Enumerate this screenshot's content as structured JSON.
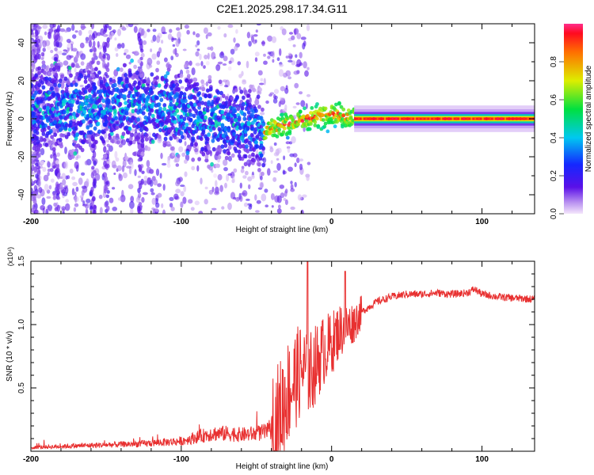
{
  "title": "C2E1.2025.298.17.34.G11",
  "chart_data": [
    {
      "type": "heatmap",
      "xlabel": "Height of straight line (km)",
      "ylabel": "Frequency (Hz)",
      "xlim": [
        -200,
        135
      ],
      "ylim": [
        -50,
        50
      ],
      "xticks": [
        -200,
        -100,
        0,
        100
      ],
      "xtick_labels": [
        "-200",
        "-100",
        "0",
        "100"
      ],
      "yticks": [
        -40,
        -20,
        0,
        20,
        40
      ],
      "ytick_labels": [
        "-40",
        "-20",
        "0",
        "20",
        "40"
      ],
      "colorbar": {
        "label": "Normalized spectral amplitude",
        "range": [
          0.0,
          1.0
        ],
        "ticks": [
          0.0,
          0.2,
          0.4,
          0.6,
          0.8
        ],
        "tick_labels": [
          "0.0",
          "0.2",
          "0.4",
          "0.6",
          "0.8"
        ],
        "colormap": "rainbow (purple-blue-cyan-green-yellow-orange-red)"
      },
      "ridge": {
        "x": [
          -200,
          -180,
          -160,
          -140,
          -120,
          -100,
          -80,
          -60,
          -45,
          -40,
          -30,
          -20,
          -10,
          0,
          5,
          10,
          20,
          40,
          60,
          80,
          100,
          135
        ],
        "y": [
          5,
          5,
          6,
          7,
          6,
          3,
          -1,
          -3,
          -8,
          -5,
          -3,
          -1,
          1,
          3,
          2,
          1,
          0,
          0,
          0,
          0,
          0,
          0
        ]
      }
    },
    {
      "type": "line",
      "xlabel": "Height of straight line (km)",
      "ylabel": "SNR (10 * v/v)",
      "y_multiplier": "(x10⁴)",
      "xlim": [
        -200,
        135
      ],
      "ylim": [
        0,
        1.5
      ],
      "xticks": [
        -200,
        -100,
        0,
        100
      ],
      "xtick_labels": [
        "-200",
        "-100",
        "0",
        "100"
      ],
      "yticks": [
        0.5,
        1.0,
        1.5
      ],
      "ytick_labels": [
        "0.5",
        "1.0",
        "1.5"
      ],
      "series": [
        {
          "name": "SNR",
          "color": "#e83030",
          "envelope_x": [
            -200,
            -175,
            -150,
            -125,
            -100,
            -90,
            -80,
            -70,
            -60,
            -50,
            -40,
            -35,
            -30,
            -25,
            -20,
            -15,
            -10,
            -5,
            0,
            5,
            10,
            15,
            20,
            30,
            40,
            50,
            60,
            70,
            80,
            90,
            95,
            100,
            110,
            120,
            135
          ],
          "envelope_y": [
            0.03,
            0.04,
            0.05,
            0.06,
            0.08,
            0.11,
            0.14,
            0.14,
            0.13,
            0.14,
            0.16,
            0.25,
            0.45,
            0.55,
            0.65,
            0.6,
            0.7,
            0.8,
            0.85,
            0.95,
            0.98,
            1.02,
            1.1,
            1.18,
            1.22,
            1.24,
            1.24,
            1.25,
            1.24,
            1.25,
            1.28,
            1.24,
            1.22,
            1.21,
            1.2
          ]
        }
      ]
    }
  ],
  "colors": {
    "line": "#e83030",
    "frame": "#000000",
    "background": "#ffffff"
  }
}
